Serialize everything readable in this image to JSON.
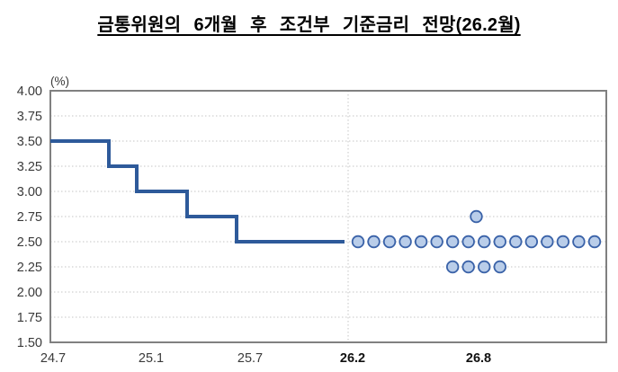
{
  "page": {
    "background": "#ffffff"
  },
  "chart_data": {
    "type": "line",
    "title": "금통위원의 6개월 후 조건부 기준금리 전망(26.2월)",
    "unit_label": "(%)",
    "ylabel": "(%)",
    "xlabel": "",
    "ylim": [
      1.5,
      4.0
    ],
    "ytick_step": 0.25,
    "ytick_labels": [
      "4.00",
      "3.75",
      "3.50",
      "3.25",
      "3.00",
      "2.75",
      "2.50",
      "2.25",
      "2.00",
      "1.75",
      "1.50"
    ],
    "xtick_labels": [
      "24.7",
      "25.1",
      "25.7",
      "26.2",
      "26.8"
    ],
    "xtick_bold": [
      false,
      false,
      false,
      true,
      true
    ],
    "grid": true,
    "legend": false,
    "series": [
      {
        "name": "base-rate-step-line",
        "type": "step",
        "points": [
          {
            "date": "24.7",
            "rate": 3.5
          },
          {
            "date": "24.10",
            "rate": 3.25
          },
          {
            "date": "24.11",
            "rate": 3.0
          },
          {
            "date": "25.2",
            "rate": 2.75
          },
          {
            "date": "25.5",
            "rate": 2.5
          },
          {
            "date": "26.2",
            "rate": 2.5
          }
        ]
      },
      {
        "name": "member-forecast-dots",
        "type": "scatter",
        "rows": [
          {
            "rate": 2.75,
            "count": 1,
            "slots": [
              7.5
            ]
          },
          {
            "rate": 2.5,
            "count": 16,
            "slots": [
              0,
              1,
              2,
              3,
              4,
              5,
              6,
              7,
              8,
              9,
              10,
              11,
              12,
              13,
              14,
              15
            ]
          },
          {
            "rate": 2.25,
            "count": 4,
            "slots": [
              6,
              7,
              8,
              9
            ]
          }
        ]
      }
    ],
    "forecast_divider_label": "26.2",
    "colors": {
      "step_line": "#2e5a9a",
      "dot_fill": "#b9cde9",
      "dot_border": "#3a62a8",
      "grid": "#c6c6c6",
      "axis_border": "#808080",
      "tick_text": "#3a3a3a",
      "bold_tick_text": "#111111"
    }
  }
}
